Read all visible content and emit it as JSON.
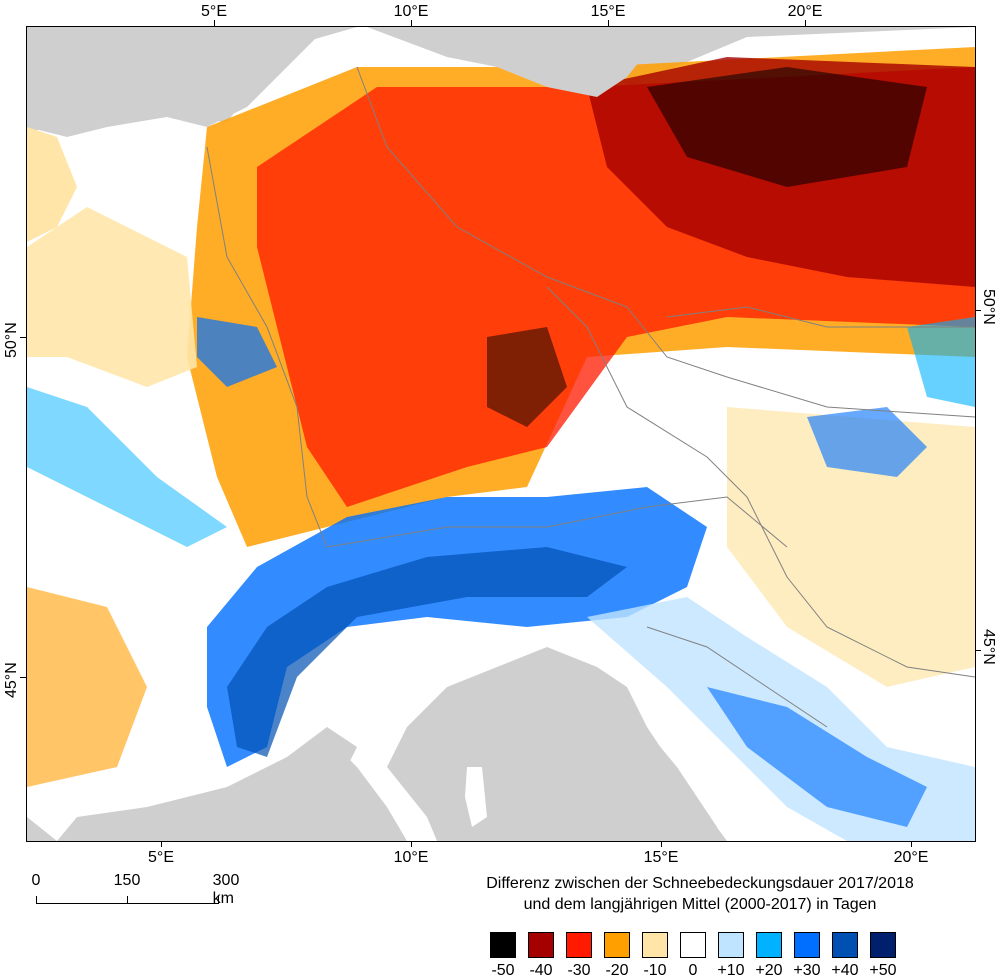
{
  "axes": {
    "top_lon": [
      "5°E",
      "10°E",
      "15°E",
      "20°E"
    ],
    "bottom_lon": [
      "5°E",
      "10°E",
      "15°E",
      "20°E"
    ],
    "left_lat": [
      "50°N",
      "45°N"
    ],
    "right_lat": [
      "50°N",
      "45°N"
    ]
  },
  "scale_bar": {
    "labels": [
      "0",
      "150",
      "300 km"
    ]
  },
  "legend": {
    "title_line1": "Differenz zwischen der Schneebedeckungsdauer 2017/2018",
    "title_line2": "und dem langjährigen Mittel (2000-2017) in Tagen",
    "classes": [
      {
        "label": "-50",
        "color": "#000000"
      },
      {
        "label": "-40",
        "color": "#a50000"
      },
      {
        "label": "-30",
        "color": "#ff1a00"
      },
      {
        "label": "-20",
        "color": "#ff9f00"
      },
      {
        "label": "-10",
        "color": "#ffe6a8"
      },
      {
        "label": "0",
        "color": "#ffffff"
      },
      {
        "label": "+10",
        "color": "#bfe4ff"
      },
      {
        "label": "+20",
        "color": "#00b2ff"
      },
      {
        "label": "+30",
        "color": "#006fff"
      },
      {
        "label": "+40",
        "color": "#0050b4"
      },
      {
        "label": "+50",
        "color": "#00206e"
      }
    ]
  },
  "map_colors": {
    "sea": "#cfcfcf",
    "border": "#808080"
  }
}
